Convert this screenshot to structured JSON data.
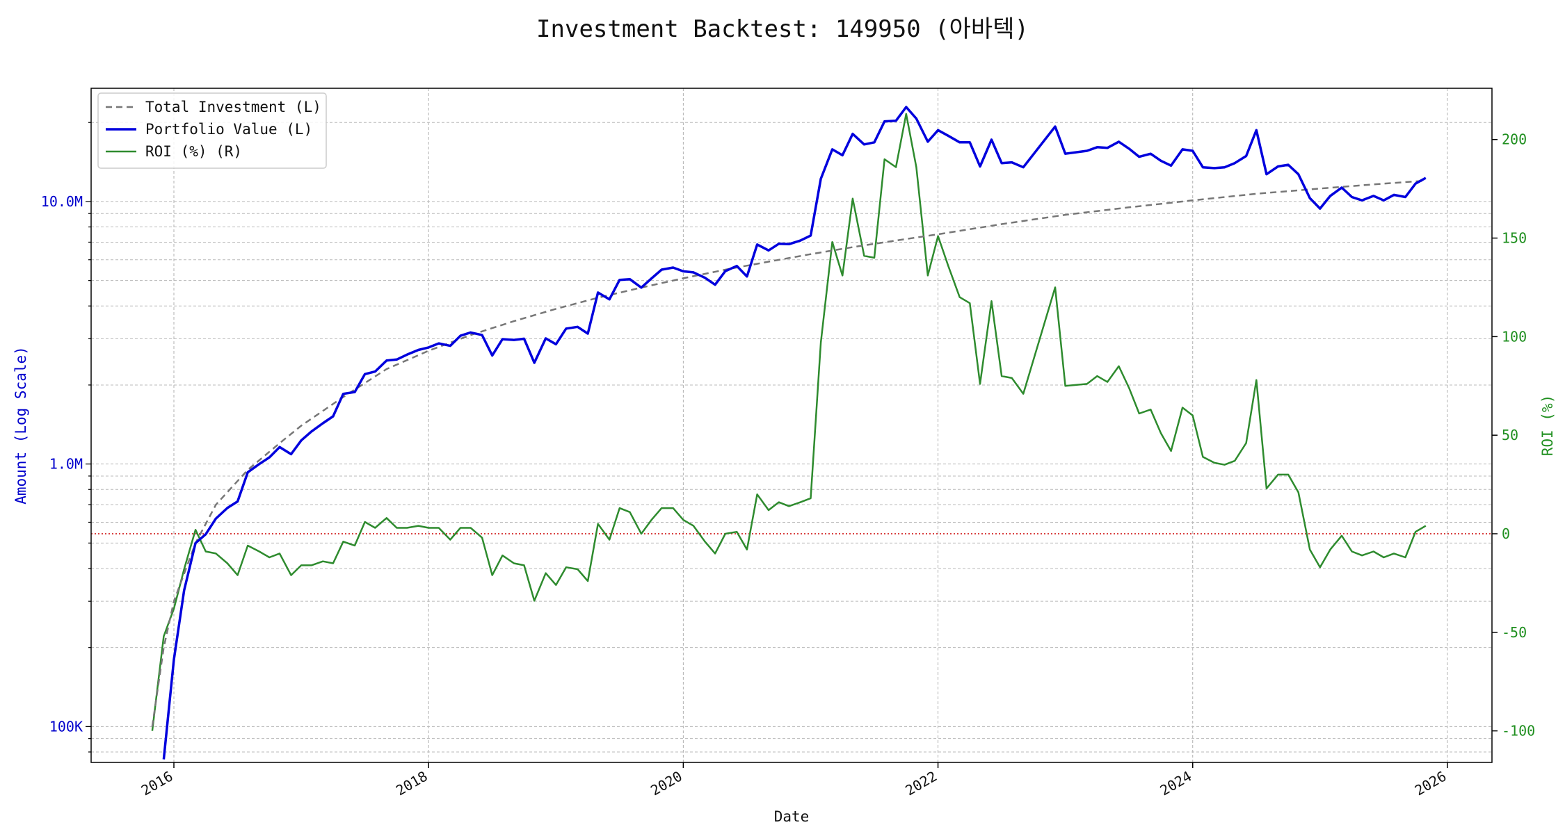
{
  "chart_data": {
    "type": "line",
    "title": "Investment Backtest: 149950 (아바텍)",
    "xlabel": "Date",
    "ylabel_left": "Amount (Log Scale)",
    "ylabel_right": "ROI (%)",
    "y_left_scale": "log",
    "y_left_ticks": [
      {
        "value": 100000,
        "label": "100K"
      },
      {
        "value": 1000000,
        "label": "1.0M"
      },
      {
        "value": 10000000,
        "label": "10.0M"
      }
    ],
    "y_left_range": [
      73000,
      27000000
    ],
    "y_right_ticks": [
      -100,
      -50,
      0,
      50,
      100,
      150,
      200
    ],
    "y_right_range": [
      -116,
      226
    ],
    "x_ticks": [
      "2016",
      "2018",
      "2020",
      "2022",
      "2024",
      "2026"
    ],
    "x_range": [
      2015.35,
      2026.35
    ],
    "grid": true,
    "legend_position": "top-left",
    "reference_line": {
      "axis": "right",
      "value": 0,
      "color": "#cc0000",
      "style": "dotted"
    },
    "colors": {
      "total_investment": "#777777",
      "portfolio_value": "#0000dd",
      "roi": "#2e8b2e",
      "left_axis": "#0000cc",
      "right_axis": "#1f8f1f"
    },
    "series": [
      {
        "name": "Total Investment (L)",
        "axis": "left",
        "style": "dashed",
        "x": [
          2015.83,
          2015.92,
          2016.0,
          2016.17,
          2016.33,
          2016.58,
          2016.83,
          2017.0,
          2017.33,
          2017.67,
          2018.0,
          2018.33,
          2018.67,
          2019.0,
          2019.33,
          2019.67,
          2020.0,
          2020.33,
          2020.67,
          2021.0,
          2021.33,
          2021.67,
          2022.0,
          2022.5,
          2023.0,
          2023.5,
          2024.0,
          2024.5,
          2025.0,
          2025.5,
          2025.83
        ],
        "values": [
          100000,
          200000,
          300000,
          500000,
          700000,
          950000,
          1200000,
          1400000,
          1800000,
          2300000,
          2700000,
          3100000,
          3500000,
          3900000,
          4300000,
          4700000,
          5100000,
          5500000,
          5900000,
          6300000,
          6700000,
          7100000,
          7500000,
          8200000,
          8900000,
          9500000,
          10100000,
          10700000,
          11200000,
          11700000,
          12000000
        ]
      },
      {
        "name": "Portfolio Value (L)",
        "axis": "left",
        "style": "solid",
        "x": [
          2015.92,
          2016.0,
          2016.08,
          2016.17,
          2016.25,
          2016.33,
          2016.42,
          2016.5,
          2016.58,
          2016.67,
          2016.75,
          2016.83,
          2016.92,
          2017.0,
          2017.08,
          2017.17,
          2017.25,
          2017.33,
          2017.42,
          2017.5,
          2017.58,
          2017.67,
          2017.75,
          2017.83,
          2017.92,
          2018.0,
          2018.08,
          2018.17,
          2018.25,
          2018.33,
          2018.42,
          2018.5,
          2018.58,
          2018.67,
          2018.75,
          2018.83,
          2018.92,
          2019.0,
          2019.08,
          2019.17,
          2019.25,
          2019.33,
          2019.42,
          2019.5,
          2019.58,
          2019.67,
          2019.75,
          2019.83,
          2019.92,
          2020.0,
          2020.08,
          2020.17,
          2020.25,
          2020.33,
          2020.42,
          2020.5,
          2020.58,
          2020.67,
          2020.75,
          2020.83,
          2020.92,
          2021.0,
          2021.08,
          2021.17,
          2021.25,
          2021.33,
          2021.42,
          2021.5,
          2021.58,
          2021.67,
          2021.75,
          2021.83,
          2021.92,
          2022.0,
          2022.08,
          2022.17,
          2022.25,
          2022.33,
          2022.42,
          2022.5,
          2022.58,
          2022.67,
          2022.92,
          2023.0,
          2023.17,
          2023.25,
          2023.33,
          2023.42,
          2023.5,
          2023.58,
          2023.67,
          2023.75,
          2023.83,
          2023.92,
          2024.0,
          2024.08,
          2024.17,
          2024.25,
          2024.33,
          2024.42,
          2024.5,
          2024.58,
          2024.67,
          2024.75,
          2024.83,
          2024.92,
          2025.0,
          2025.08,
          2025.17,
          2025.25,
          2025.33,
          2025.42,
          2025.5,
          2025.58,
          2025.67,
          2025.75,
          2025.83
        ],
        "values": [
          75000,
          180000,
          330000,
          500000,
          540000,
          620000,
          680000,
          720000,
          930000,
          1000000,
          1060000,
          1160000,
          1090000,
          1230000,
          1330000,
          1430000,
          1520000,
          1850000,
          1880000,
          2200000,
          2250000,
          2480000,
          2500000,
          2610000,
          2720000,
          2780000,
          2880000,
          2820000,
          3080000,
          3170000,
          3100000,
          2590000,
          2990000,
          2970000,
          3000000,
          2430000,
          3010000,
          2860000,
          3280000,
          3330000,
          3140000,
          4500000,
          4240000,
          5030000,
          5060000,
          4700000,
          5090000,
          5500000,
          5600000,
          5420000,
          5370000,
          5120000,
          4820000,
          5430000,
          5680000,
          5180000,
          6860000,
          6510000,
          6900000,
          6880000,
          7100000,
          7420000,
          12200000,
          15800000,
          15000000,
          18100000,
          16500000,
          16800000,
          20200000,
          20300000,
          22900000,
          20700000,
          16900000,
          18700000,
          17800000,
          16800000,
          16800000,
          13600000,
          17200000,
          14000000,
          14100000,
          13500000,
          19300000,
          15200000,
          15600000,
          16100000,
          16000000,
          16900000,
          15900000,
          14800000,
          15200000,
          14300000,
          13700000,
          15800000,
          15600000,
          13500000,
          13400000,
          13500000,
          14000000,
          14900000,
          18700000,
          12700000,
          13600000,
          13800000,
          12700000,
          10300000,
          9400000,
          10500000,
          11300000,
          10400000,
          10100000,
          10500000,
          10100000,
          10600000,
          10400000,
          11700000,
          12300000
        ]
      },
      {
        "name": "ROI (%) (R)",
        "axis": "right",
        "style": "solid",
        "x": [
          2015.83,
          2015.92,
          2016.0,
          2016.08,
          2016.17,
          2016.25,
          2016.33,
          2016.42,
          2016.5,
          2016.58,
          2016.67,
          2016.75,
          2016.83,
          2016.92,
          2017.0,
          2017.08,
          2017.17,
          2017.25,
          2017.33,
          2017.42,
          2017.5,
          2017.58,
          2017.67,
          2017.75,
          2017.83,
          2017.92,
          2018.0,
          2018.08,
          2018.17,
          2018.25,
          2018.33,
          2018.42,
          2018.5,
          2018.58,
          2018.67,
          2018.75,
          2018.83,
          2018.92,
          2019.0,
          2019.08,
          2019.17,
          2019.25,
          2019.33,
          2019.42,
          2019.5,
          2019.58,
          2019.67,
          2019.75,
          2019.83,
          2019.92,
          2020.0,
          2020.08,
          2020.17,
          2020.25,
          2020.33,
          2020.42,
          2020.5,
          2020.58,
          2020.67,
          2020.75,
          2020.83,
          2020.92,
          2021.0,
          2021.08,
          2021.17,
          2021.25,
          2021.33,
          2021.42,
          2021.5,
          2021.58,
          2021.67,
          2021.75,
          2021.83,
          2021.92,
          2022.0,
          2022.08,
          2022.17,
          2022.25,
          2022.33,
          2022.42,
          2022.5,
          2022.58,
          2022.67,
          2022.92,
          2023.0,
          2023.17,
          2023.25,
          2023.33,
          2023.42,
          2023.5,
          2023.58,
          2023.67,
          2023.75,
          2023.83,
          2023.92,
          2024.0,
          2024.08,
          2024.17,
          2024.25,
          2024.33,
          2024.42,
          2024.5,
          2024.58,
          2024.67,
          2024.75,
          2024.83,
          2024.92,
          2025.0,
          2025.08,
          2025.17,
          2025.25,
          2025.33,
          2025.42,
          2025.5,
          2025.58,
          2025.67,
          2025.75,
          2025.83
        ],
        "values": [
          -100,
          -52,
          -38,
          -18,
          2,
          -9,
          -10,
          -15,
          -21,
          -6,
          -9,
          -12,
          -10,
          -21,
          -16,
          -16,
          -14,
          -15,
          -4,
          -6,
          6,
          3,
          8,
          3,
          3,
          4,
          3,
          3,
          -3,
          3,
          3,
          -2,
          -21,
          -11,
          -15,
          -16,
          -34,
          -20,
          -26,
          -17,
          -18,
          -24,
          5,
          -3,
          13,
          11,
          0,
          7,
          13,
          13,
          7,
          4,
          -4,
          -10,
          0,
          1,
          -8,
          20,
          12,
          16,
          14,
          16,
          18,
          97,
          148,
          131,
          170,
          141,
          140,
          190,
          186,
          213,
          186,
          131,
          151,
          136,
          120,
          117,
          76,
          118,
          80,
          79,
          71,
          125,
          75,
          76,
          80,
          77,
          85,
          74,
          61,
          63,
          51,
          42,
          64,
          60,
          39,
          36,
          35,
          37,
          46,
          78,
          23,
          30,
          30,
          21,
          -8,
          -17,
          -8,
          -1,
          -9,
          -11,
          -9,
          -12,
          -10,
          -12,
          1,
          4
        ]
      }
    ]
  }
}
